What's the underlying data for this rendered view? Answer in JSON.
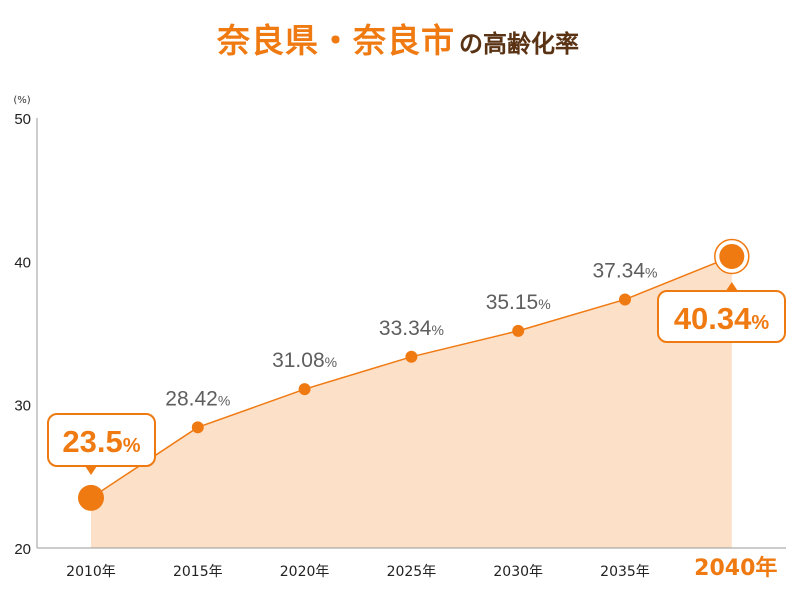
{
  "title": {
    "main": "奈良県・奈良市",
    "sub": "の高齢化率"
  },
  "colors": {
    "accent": "#f07a12",
    "fill": "#fde0c8",
    "axis": "#999999",
    "label": "#5e5e5e"
  },
  "chart_data": {
    "type": "area",
    "title": "奈良県・奈良市の高齢化率",
    "yunit": "(%)",
    "categories": [
      "2010年",
      "2015年",
      "2020年",
      "2025年",
      "2030年",
      "2035年",
      "2040年"
    ],
    "series": [
      {
        "values": [
          23.5,
          28.42,
          31.08,
          33.34,
          35.15,
          37.34,
          40.34
        ]
      }
    ],
    "value_labels": [
      "23.5",
      "28.42",
      "31.08",
      "33.34",
      "35.15",
      "37.34",
      "40.34"
    ],
    "value_suffix": "%",
    "highlighted": [
      0,
      6
    ],
    "ylim": [
      20,
      50
    ],
    "yticks": [
      20,
      30,
      40,
      50
    ],
    "grid": false,
    "legend": "none"
  }
}
